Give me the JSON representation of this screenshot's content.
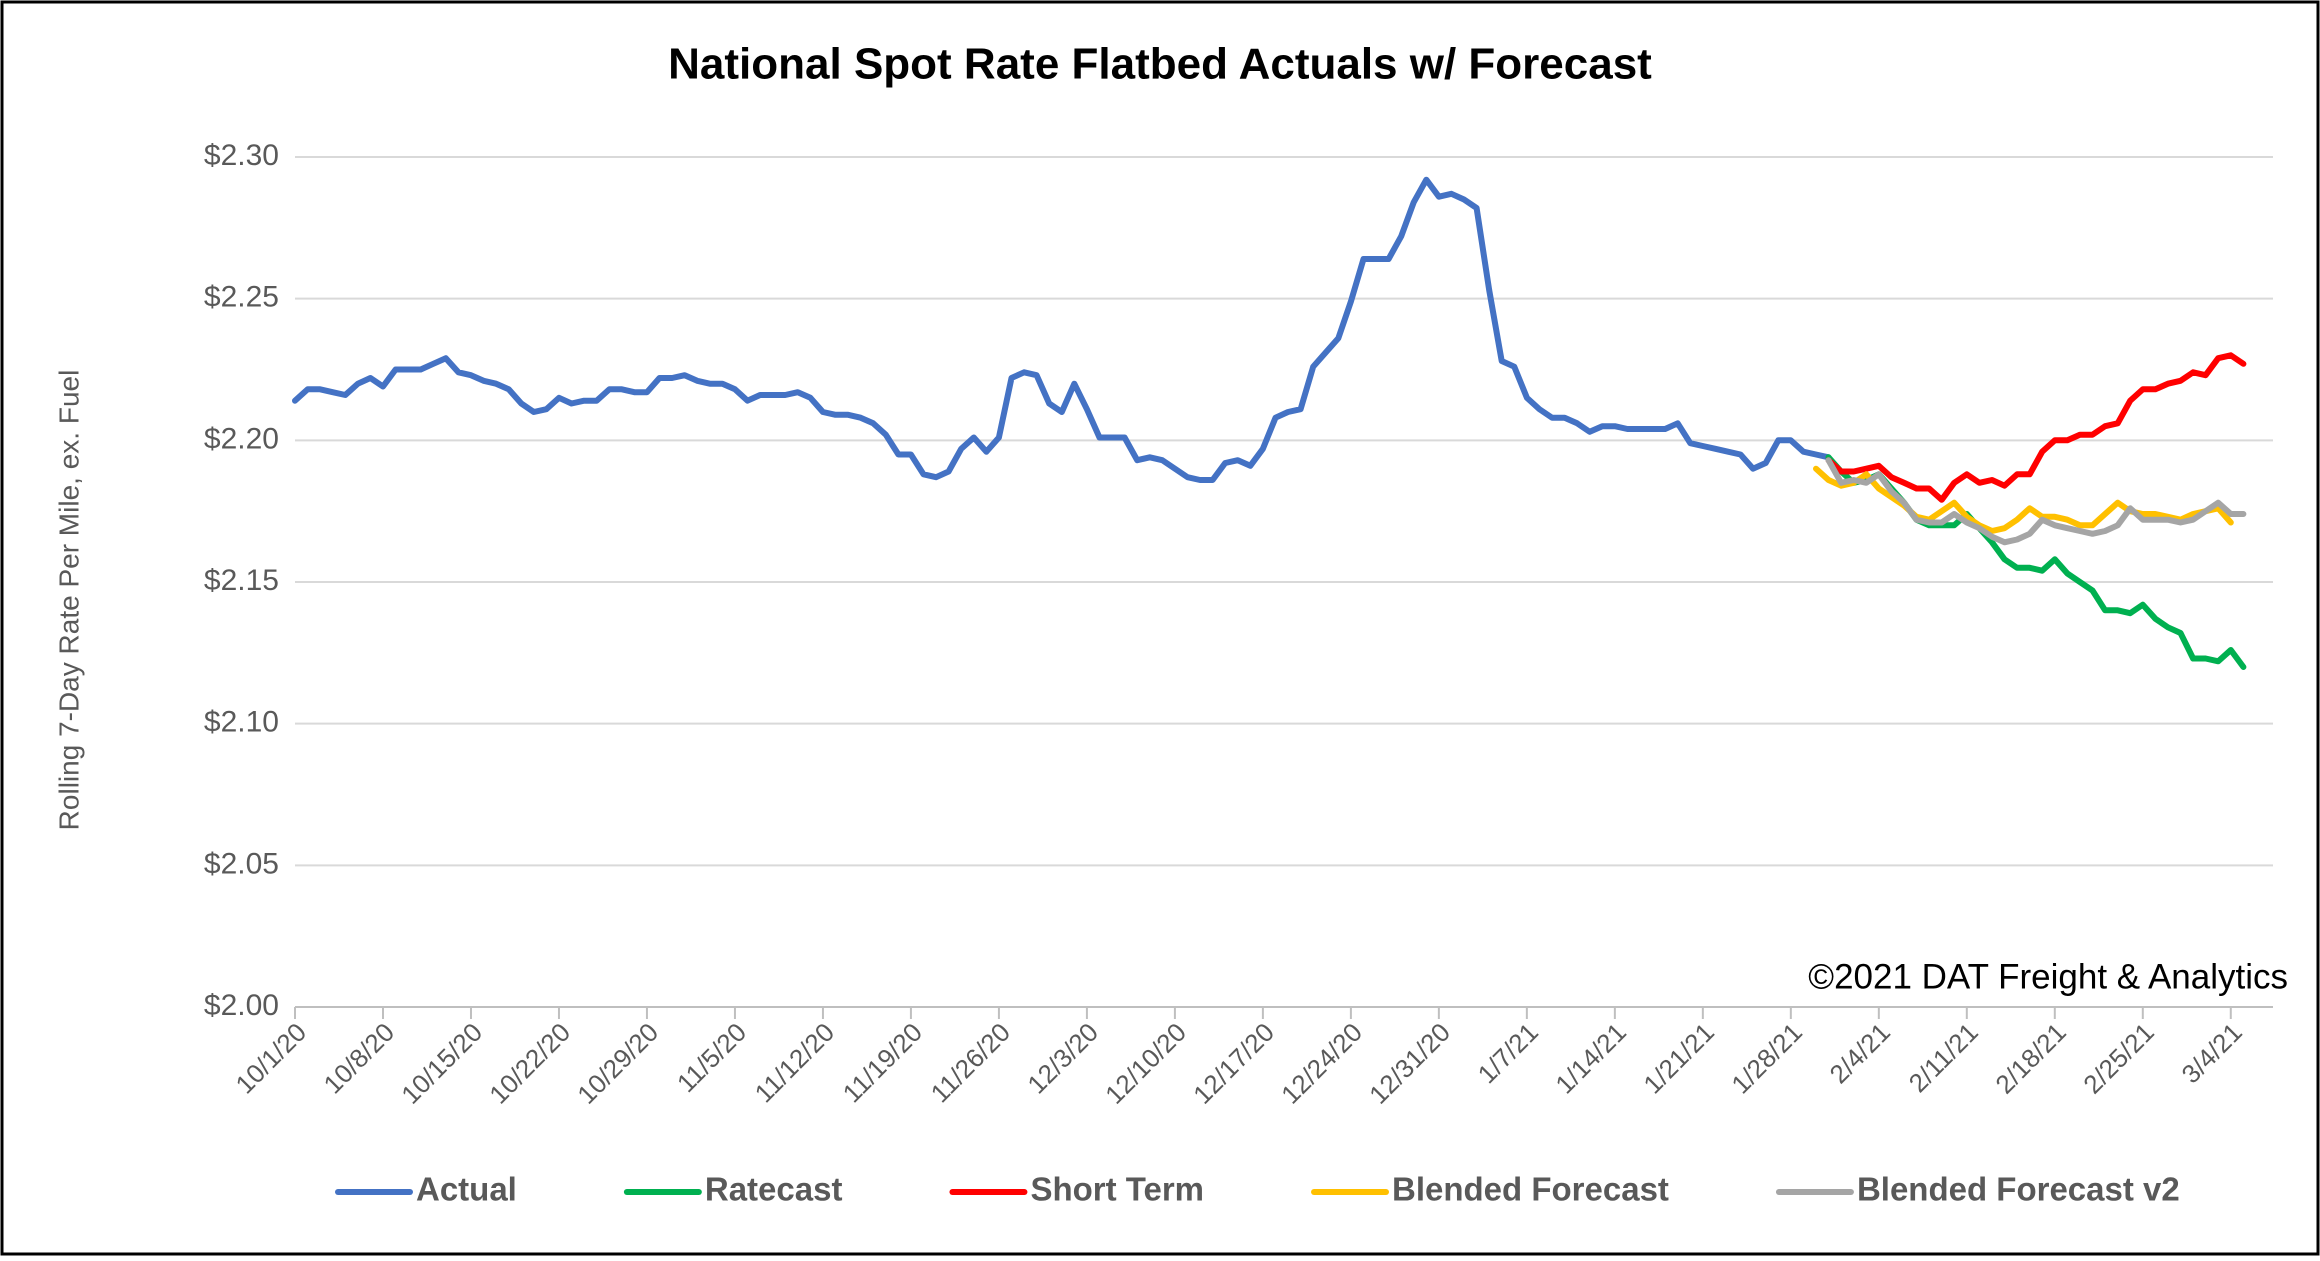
{
  "chart_data": {
    "type": "line",
    "title": "National Spot Rate Flatbed Actuals w/ Forecast",
    "y_label": "Rolling 7-Day Rate Per Mile, ex. Fuel",
    "annotation": "©2021 DAT Freight & Analytics",
    "ylim": [
      2.0,
      2.3
    ],
    "yticks": [
      {
        "value": 2.0,
        "label": "$2.00"
      },
      {
        "value": 2.05,
        "label": "$2.05"
      },
      {
        "value": 2.1,
        "label": "$2.10"
      },
      {
        "value": 2.15,
        "label": "$2.15"
      },
      {
        "value": 2.2,
        "label": "$2.20"
      },
      {
        "value": 2.25,
        "label": "$2.25"
      },
      {
        "value": 2.3,
        "label": "$2.30"
      }
    ],
    "grid": true,
    "legend": "bottom",
    "x": [
      "10/1/20",
      "10/2/20",
      "10/3/20",
      "10/4/20",
      "10/5/20",
      "10/6/20",
      "10/7/20",
      "10/8/20",
      "10/9/20",
      "10/10/20",
      "10/11/20",
      "10/12/20",
      "10/13/20",
      "10/14/20",
      "10/15/20",
      "10/16/20",
      "10/17/20",
      "10/18/20",
      "10/19/20",
      "10/20/20",
      "10/21/20",
      "10/22/20",
      "10/23/20",
      "10/24/20",
      "10/25/20",
      "10/26/20",
      "10/27/20",
      "10/28/20",
      "10/29/20",
      "10/30/20",
      "10/31/20",
      "11/1/20",
      "11/2/20",
      "11/3/20",
      "11/4/20",
      "11/5/20",
      "11/6/20",
      "11/7/20",
      "11/8/20",
      "11/9/20",
      "11/10/20",
      "11/11/20",
      "11/12/20",
      "11/13/20",
      "11/14/20",
      "11/15/20",
      "11/16/20",
      "11/17/20",
      "11/18/20",
      "11/19/20",
      "11/20/20",
      "11/21/20",
      "11/22/20",
      "11/23/20",
      "11/24/20",
      "11/25/20",
      "11/26/20",
      "11/27/20",
      "11/28/20",
      "11/29/20",
      "11/30/20",
      "12/1/20",
      "12/2/20",
      "12/3/20",
      "12/4/20",
      "12/5/20",
      "12/6/20",
      "12/7/20",
      "12/8/20",
      "12/9/20",
      "12/10/20",
      "12/11/20",
      "12/12/20",
      "12/13/20",
      "12/14/20",
      "12/15/20",
      "12/16/20",
      "12/17/20",
      "12/18/20",
      "12/19/20",
      "12/20/20",
      "12/21/20",
      "12/22/20",
      "12/23/20",
      "12/24/20",
      "12/25/20",
      "12/26/20",
      "12/27/20",
      "12/28/20",
      "12/29/20",
      "12/30/20",
      "12/31/20",
      "1/1/21",
      "1/2/21",
      "1/3/21",
      "1/4/21",
      "1/5/21",
      "1/6/21",
      "1/7/21",
      "1/8/21",
      "1/9/21",
      "1/10/21",
      "1/11/21",
      "1/12/21",
      "1/13/21",
      "1/14/21",
      "1/15/21",
      "1/16/21",
      "1/17/21",
      "1/18/21",
      "1/19/21",
      "1/20/21",
      "1/21/21",
      "1/22/21",
      "1/23/21",
      "1/24/21",
      "1/25/21",
      "1/26/21",
      "1/27/21",
      "1/28/21",
      "1/29/21",
      "1/30/21",
      "1/31/21",
      "2/1/21",
      "2/2/21",
      "2/3/21",
      "2/4/21",
      "2/5/21",
      "2/6/21",
      "2/7/21",
      "2/8/21",
      "2/9/21",
      "2/10/21",
      "2/11/21",
      "2/12/21",
      "2/13/21",
      "2/14/21",
      "2/15/21",
      "2/16/21",
      "2/17/21",
      "2/18/21",
      "2/19/21",
      "2/20/21",
      "2/21/21",
      "2/22/21",
      "2/23/21",
      "2/24/21",
      "2/25/21",
      "2/26/21",
      "2/27/21",
      "2/28/21",
      "3/1/21",
      "3/2/21",
      "3/3/21",
      "3/4/21",
      "3/5/21"
    ],
    "xticks": [
      "10/1/20",
      "10/8/20",
      "10/15/20",
      "10/22/20",
      "10/29/20",
      "11/5/20",
      "11/12/20",
      "11/19/20",
      "11/26/20",
      "12/3/20",
      "12/10/20",
      "12/17/20",
      "12/24/20",
      "12/31/20",
      "1/7/21",
      "1/14/21",
      "1/21/21",
      "1/28/21",
      "2/4/21",
      "2/11/21",
      "2/18/21",
      "2/25/21",
      "3/4/21"
    ],
    "series": [
      {
        "name": "Actual",
        "color": "#4472c4",
        "values": [
          2.214,
          2.218,
          2.218,
          2.217,
          2.216,
          2.22,
          2.222,
          2.219,
          2.225,
          2.225,
          2.225,
          2.227,
          2.229,
          2.224,
          2.223,
          2.221,
          2.22,
          2.218,
          2.213,
          2.21,
          2.211,
          2.215,
          2.213,
          2.214,
          2.214,
          2.218,
          2.218,
          2.217,
          2.217,
          2.222,
          2.222,
          2.223,
          2.221,
          2.22,
          2.22,
          2.218,
          2.214,
          2.216,
          2.216,
          2.216,
          2.217,
          2.215,
          2.21,
          2.209,
          2.209,
          2.208,
          2.206,
          2.202,
          2.195,
          2.195,
          2.188,
          2.187,
          2.189,
          2.197,
          2.201,
          2.196,
          2.201,
          2.222,
          2.224,
          2.223,
          2.213,
          2.21,
          2.22,
          2.211,
          2.201,
          2.201,
          2.201,
          2.193,
          2.194,
          2.193,
          2.19,
          2.187,
          2.186,
          2.186,
          2.192,
          2.193,
          2.191,
          2.197,
          2.208,
          2.21,
          2.211,
          2.226,
          2.231,
          2.236,
          2.249,
          2.264,
          2.264,
          2.264,
          2.272,
          2.284,
          2.292,
          2.286,
          2.287,
          2.285,
          2.282,
          2.253,
          2.228,
          2.226,
          2.215,
          2.211,
          2.208,
          2.208,
          2.206,
          2.203,
          2.205,
          2.205,
          2.204,
          2.204,
          2.204,
          2.204,
          2.206,
          2.199,
          2.198,
          2.197,
          2.196,
          2.195,
          2.19,
          2.192,
          2.2,
          2.2,
          2.196,
          2.195,
          2.194,
          null,
          null,
          null,
          null,
          null,
          null,
          null,
          null,
          null,
          null,
          null,
          null,
          null,
          null,
          null,
          null,
          null,
          null,
          null,
          null,
          null,
          null,
          null,
          null,
          null,
          null,
          null,
          null,
          null,
          null,
          null,
          null,
          null
        ]
      },
      {
        "name": "Ratecast",
        "color": "#00b050",
        "values": [
          null,
          null,
          null,
          null,
          null,
          null,
          null,
          null,
          null,
          null,
          null,
          null,
          null,
          null,
          null,
          null,
          null,
          null,
          null,
          null,
          null,
          null,
          null,
          null,
          null,
          null,
          null,
          null,
          null,
          null,
          null,
          null,
          null,
          null,
          null,
          null,
          null,
          null,
          null,
          null,
          null,
          null,
          null,
          null,
          null,
          null,
          null,
          null,
          null,
          null,
          null,
          null,
          null,
          null,
          null,
          null,
          null,
          null,
          null,
          null,
          null,
          null,
          null,
          null,
          null,
          null,
          null,
          null,
          null,
          null,
          null,
          null,
          null,
          null,
          null,
          null,
          null,
          null,
          null,
          null,
          null,
          null,
          null,
          null,
          null,
          null,
          null,
          null,
          null,
          null,
          null,
          null,
          null,
          null,
          null,
          null,
          null,
          null,
          null,
          null,
          null,
          null,
          null,
          null,
          null,
          null,
          null,
          null,
          null,
          null,
          null,
          null,
          null,
          null,
          null,
          null,
          null,
          null,
          null,
          null,
          null,
          null,
          2.194,
          2.189,
          2.185,
          2.186,
          2.188,
          2.183,
          2.178,
          2.172,
          2.17,
          2.17,
          2.17,
          2.174,
          2.169,
          2.164,
          2.158,
          2.155,
          2.155,
          2.154,
          2.158,
          2.153,
          2.15,
          2.147,
          2.14,
          2.14,
          2.139,
          2.142,
          2.137,
          2.134,
          2.132,
          2.123,
          2.123,
          2.122,
          2.126,
          2.12
        ]
      },
      {
        "name": "Short Term",
        "color": "#ff0000",
        "values": [
          null,
          null,
          null,
          null,
          null,
          null,
          null,
          null,
          null,
          null,
          null,
          null,
          null,
          null,
          null,
          null,
          null,
          null,
          null,
          null,
          null,
          null,
          null,
          null,
          null,
          null,
          null,
          null,
          null,
          null,
          null,
          null,
          null,
          null,
          null,
          null,
          null,
          null,
          null,
          null,
          null,
          null,
          null,
          null,
          null,
          null,
          null,
          null,
          null,
          null,
          null,
          null,
          null,
          null,
          null,
          null,
          null,
          null,
          null,
          null,
          null,
          null,
          null,
          null,
          null,
          null,
          null,
          null,
          null,
          null,
          null,
          null,
          null,
          null,
          null,
          null,
          null,
          null,
          null,
          null,
          null,
          null,
          null,
          null,
          null,
          null,
          null,
          null,
          null,
          null,
          null,
          null,
          null,
          null,
          null,
          null,
          null,
          null,
          null,
          null,
          null,
          null,
          null,
          null,
          null,
          null,
          null,
          null,
          null,
          null,
          null,
          null,
          null,
          null,
          null,
          null,
          null,
          null,
          null,
          null,
          null,
          null,
          2.193,
          2.189,
          2.189,
          2.19,
          2.191,
          2.187,
          2.185,
          2.183,
          2.183,
          2.179,
          2.185,
          2.188,
          2.185,
          2.186,
          2.184,
          2.188,
          2.188,
          2.196,
          2.2,
          2.2,
          2.202,
          2.202,
          2.205,
          2.206,
          2.214,
          2.218,
          2.218,
          2.22,
          2.221,
          2.224,
          2.223,
          2.229,
          2.23,
          2.227
        ]
      },
      {
        "name": "Blended Forecast",
        "color": "#ffc000",
        "values": [
          null,
          null,
          null,
          null,
          null,
          null,
          null,
          null,
          null,
          null,
          null,
          null,
          null,
          null,
          null,
          null,
          null,
          null,
          null,
          null,
          null,
          null,
          null,
          null,
          null,
          null,
          null,
          null,
          null,
          null,
          null,
          null,
          null,
          null,
          null,
          null,
          null,
          null,
          null,
          null,
          null,
          null,
          null,
          null,
          null,
          null,
          null,
          null,
          null,
          null,
          null,
          null,
          null,
          null,
          null,
          null,
          null,
          null,
          null,
          null,
          null,
          null,
          null,
          null,
          null,
          null,
          null,
          null,
          null,
          null,
          null,
          null,
          null,
          null,
          null,
          null,
          null,
          null,
          null,
          null,
          null,
          null,
          null,
          null,
          null,
          null,
          null,
          null,
          null,
          null,
          null,
          null,
          null,
          null,
          null,
          null,
          null,
          null,
          null,
          null,
          null,
          null,
          null,
          null,
          null,
          null,
          null,
          null,
          null,
          null,
          null,
          null,
          null,
          null,
          null,
          null,
          null,
          null,
          null,
          null,
          null,
          2.19,
          2.186,
          2.184,
          2.185,
          2.188,
          2.183,
          2.18,
          2.177,
          2.173,
          2.172,
          2.175,
          2.178,
          2.173,
          2.17,
          2.168,
          2.169,
          2.172,
          2.176,
          2.173,
          2.173,
          2.172,
          2.17,
          2.17,
          2.174,
          2.178,
          2.175,
          2.174,
          2.174,
          2.173,
          2.172,
          2.174,
          2.175,
          2.176,
          2.171,
          null
        ]
      },
      {
        "name": "Blended Forecast v2",
        "color": "#a5a5a5",
        "values": [
          null,
          null,
          null,
          null,
          null,
          null,
          null,
          null,
          null,
          null,
          null,
          null,
          null,
          null,
          null,
          null,
          null,
          null,
          null,
          null,
          null,
          null,
          null,
          null,
          null,
          null,
          null,
          null,
          null,
          null,
          null,
          null,
          null,
          null,
          null,
          null,
          null,
          null,
          null,
          null,
          null,
          null,
          null,
          null,
          null,
          null,
          null,
          null,
          null,
          null,
          null,
          null,
          null,
          null,
          null,
          null,
          null,
          null,
          null,
          null,
          null,
          null,
          null,
          null,
          null,
          null,
          null,
          null,
          null,
          null,
          null,
          null,
          null,
          null,
          null,
          null,
          null,
          null,
          null,
          null,
          null,
          null,
          null,
          null,
          null,
          null,
          null,
          null,
          null,
          null,
          null,
          null,
          null,
          null,
          null,
          null,
          null,
          null,
          null,
          null,
          null,
          null,
          null,
          null,
          null,
          null,
          null,
          null,
          null,
          null,
          null,
          null,
          null,
          null,
          null,
          null,
          null,
          null,
          null,
          null,
          null,
          null,
          2.193,
          2.185,
          2.186,
          2.185,
          2.188,
          2.182,
          2.178,
          2.172,
          2.171,
          2.171,
          2.174,
          2.171,
          2.169,
          2.166,
          2.164,
          2.165,
          2.167,
          2.172,
          2.17,
          2.169,
          2.168,
          2.167,
          2.168,
          2.17,
          2.176,
          2.172,
          2.172,
          2.172,
          2.171,
          2.172,
          2.175,
          2.178,
          2.174,
          2.174
        ]
      }
    ]
  }
}
